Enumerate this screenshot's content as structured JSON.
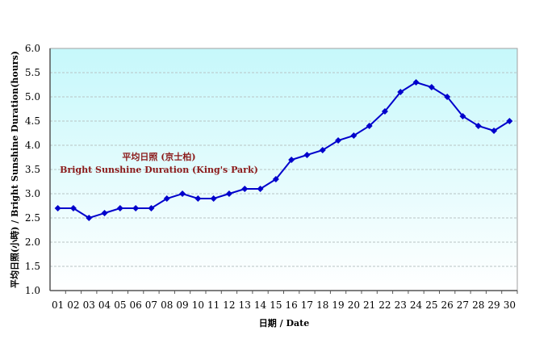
{
  "chart_data": {
    "type": "line",
    "title": "平均日照 (京士柏) Bright Sunshine Duration (King's Park)",
    "annotation": {
      "line1": "平均日照 (京士柏)",
      "line2": "Bright Sunshine Duration (King's Park)"
    },
    "xlabel": "日期 / Date",
    "ylabel": "平均日照(小時) / Bright Sunshine Duration(hours)",
    "categories": [
      "01",
      "02",
      "03",
      "04",
      "05",
      "06",
      "07",
      "08",
      "09",
      "10",
      "11",
      "12",
      "13",
      "14",
      "15",
      "16",
      "17",
      "18",
      "19",
      "20",
      "21",
      "22",
      "23",
      "24",
      "25",
      "26",
      "27",
      "28",
      "29",
      "30"
    ],
    "series": [
      {
        "name": "Bright Sunshine Duration (King's Park)",
        "color": "#0000cc",
        "marker": "diamond",
        "values": [
          2.7,
          2.7,
          2.5,
          2.6,
          2.7,
          2.7,
          2.7,
          2.9,
          3.0,
          2.9,
          2.9,
          3.0,
          3.1,
          3.1,
          3.3,
          3.7,
          3.8,
          3.9,
          4.1,
          4.2,
          4.4,
          4.7,
          5.1,
          5.3,
          5.2,
          5.0,
          4.6,
          4.4,
          4.3,
          4.5
        ]
      }
    ],
    "ylim": [
      1.0,
      6.0
    ],
    "yticks": [
      "1.0",
      "1.5",
      "2.0",
      "2.5",
      "3.0",
      "3.5",
      "4.0",
      "4.5",
      "5.0",
      "5.5",
      "6.0"
    ],
    "grid": true,
    "legend": "none",
    "background_gradient": [
      "#c6f8fb",
      "#ffffff"
    ]
  }
}
